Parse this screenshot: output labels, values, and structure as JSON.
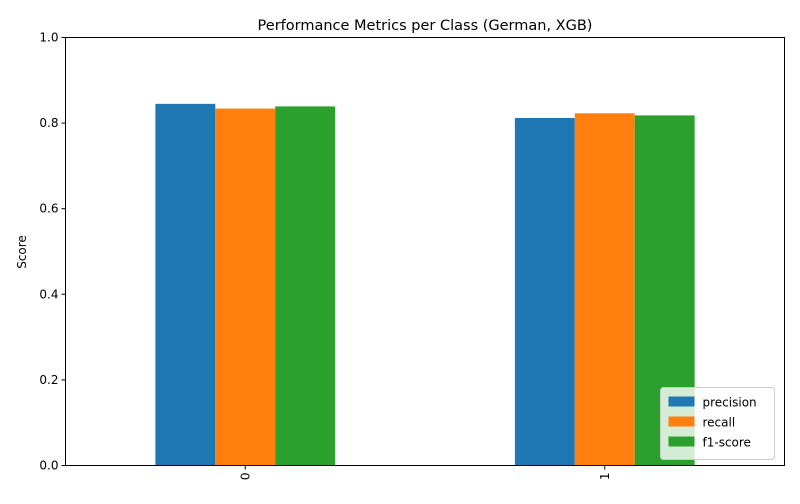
{
  "chart_data": {
    "type": "bar",
    "title": "Performance Metrics per Class (German, XGB)",
    "xlabel": "",
    "ylabel": "Score",
    "ylim": [
      0,
      1
    ],
    "yticks": [
      0.0,
      0.2,
      0.4,
      0.6,
      0.8,
      1.0
    ],
    "ytick_labels": [
      "0.0",
      "0.2",
      "0.4",
      "0.6",
      "0.8",
      "1.0"
    ],
    "categories": [
      "0",
      "1"
    ],
    "series": [
      {
        "name": "precision",
        "color": "#1f77b4",
        "values": [
          0.845,
          0.812
        ]
      },
      {
        "name": "recall",
        "color": "#ff7f0e",
        "values": [
          0.834,
          0.823
        ]
      },
      {
        "name": "f1-score",
        "color": "#2ca02c",
        "values": [
          0.839,
          0.818
        ]
      }
    ],
    "grid": false,
    "legend_position": "bottom-right",
    "xtick_rotation": "vertical"
  }
}
